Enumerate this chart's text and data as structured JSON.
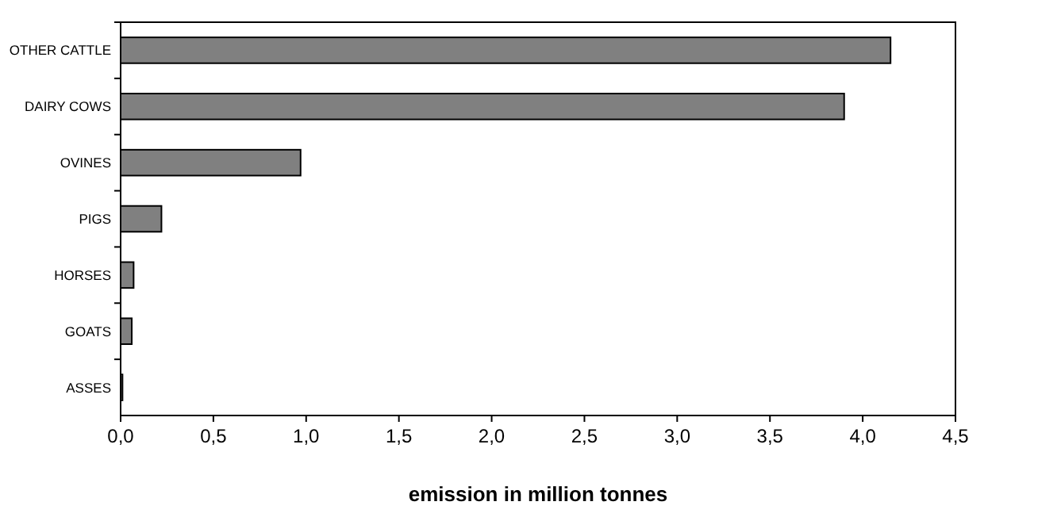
{
  "chart_data": {
    "type": "bar",
    "orientation": "horizontal",
    "xlabel": "emission in million tonnes",
    "categories": [
      "OTHER CATTLE",
      "DAIRY COWS",
      "OVINES",
      "PIGS",
      "HORSES",
      "GOATS",
      "ASSES"
    ],
    "values": [
      4.15,
      3.9,
      0.97,
      0.22,
      0.07,
      0.06,
      0.01
    ],
    "color": "#808080",
    "xlim": [
      0,
      4.5
    ],
    "xticks": [
      {
        "value": 0,
        "label": "0,0"
      },
      {
        "value": 0.5,
        "label": "0,5"
      },
      {
        "value": 1,
        "label": "1,0"
      },
      {
        "value": 1.5,
        "label": "1,5"
      },
      {
        "value": 2,
        "label": "2,0"
      },
      {
        "value": 2.5,
        "label": "2,5"
      },
      {
        "value": 3,
        "label": "3,0"
      },
      {
        "value": 3.5,
        "label": "3,5"
      },
      {
        "value": 4,
        "label": "4,0"
      },
      {
        "value": 4.5,
        "label": "4,5"
      }
    ],
    "grid": false
  }
}
